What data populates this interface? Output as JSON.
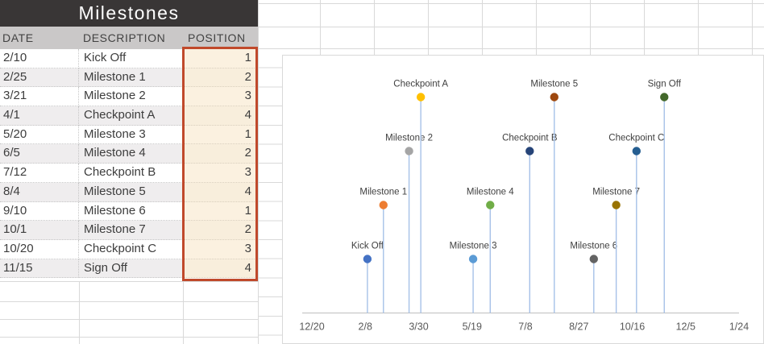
{
  "table": {
    "title": "Milestones",
    "columns": [
      "DATE",
      "DESCRIPTION",
      "POSITION"
    ],
    "rows": [
      {
        "date": "2/10",
        "description": "Kick Off",
        "position": "1"
      },
      {
        "date": "2/25",
        "description": "Milestone 1",
        "position": "2"
      },
      {
        "date": "3/21",
        "description": "Milestone 2",
        "position": "3"
      },
      {
        "date": "4/1",
        "description": "Checkpoint A",
        "position": "4"
      },
      {
        "date": "5/20",
        "description": "Milestone 3",
        "position": "1"
      },
      {
        "date": "6/5",
        "description": "Milestone 4",
        "position": "2"
      },
      {
        "date": "7/12",
        "description": "Checkpoint B",
        "position": "3"
      },
      {
        "date": "8/4",
        "description": "Milestone 5",
        "position": "4"
      },
      {
        "date": "9/10",
        "description": "Milestone 6",
        "position": "1"
      },
      {
        "date": "10/1",
        "description": "Milestone 7",
        "position": "2"
      },
      {
        "date": "10/20",
        "description": "Checkpoint C",
        "position": "3"
      },
      {
        "date": "11/15",
        "description": "Sign Off",
        "position": "4"
      }
    ],
    "colors": {
      "title_bg": "#393636",
      "header_bg": "#CAC8C8",
      "position_fill": "#FBF1E0",
      "selection_border": "#C0492B"
    }
  },
  "chart_data": {
    "type": "scatter",
    "title": "",
    "legend": "none",
    "grid": "off",
    "x_axis": {
      "tick_labels": [
        "12/20",
        "2/8",
        "3/30",
        "5/19",
        "7/8",
        "8/27",
        "10/16",
        "12/5",
        "1/24"
      ],
      "tick_days": [
        0,
        50,
        100,
        150,
        200,
        250,
        300,
        350,
        400
      ],
      "interval_days": 50
    },
    "y_axis": {
      "label": "POSITION",
      "ylim": [
        0,
        4.8
      ],
      "visible": false
    },
    "points": [
      {
        "label": "Kick Off",
        "date": "2/10",
        "day": 52,
        "position": 1,
        "color": "#4472C4"
      },
      {
        "label": "Milestone 1",
        "date": "2/25",
        "day": 67,
        "position": 2,
        "color": "#ED7D31"
      },
      {
        "label": "Milestone 2",
        "date": "3/21",
        "day": 91,
        "position": 3,
        "color": "#A5A5A5"
      },
      {
        "label": "Checkpoint A",
        "date": "4/1",
        "day": 102,
        "position": 4,
        "color": "#FFC000"
      },
      {
        "label": "Milestone 3",
        "date": "5/20",
        "day": 151,
        "position": 1,
        "color": "#5B9BD5"
      },
      {
        "label": "Milestone 4",
        "date": "6/5",
        "day": 167,
        "position": 2,
        "color": "#70AD47"
      },
      {
        "label": "Checkpoint B",
        "date": "7/12",
        "day": 204,
        "position": 3,
        "color": "#264478"
      },
      {
        "label": "Milestone 5",
        "date": "8/4",
        "day": 227,
        "position": 4,
        "color": "#9E480E"
      },
      {
        "label": "Milestone 6",
        "date": "9/10",
        "day": 264,
        "position": 1,
        "color": "#636363"
      },
      {
        "label": "Milestone 7",
        "date": "10/1",
        "day": 285,
        "position": 2,
        "color": "#997300"
      },
      {
        "label": "Checkpoint C",
        "date": "10/20",
        "day": 304,
        "position": 3,
        "color": "#255E91"
      },
      {
        "label": "Sign Off",
        "date": "11/15",
        "day": 330,
        "position": 4,
        "color": "#43682B"
      }
    ],
    "stem_color": "#A6C1E8",
    "axis_line_color": "#BFBFBF",
    "label_color": "#404040",
    "tick_label_color": "#595959"
  }
}
